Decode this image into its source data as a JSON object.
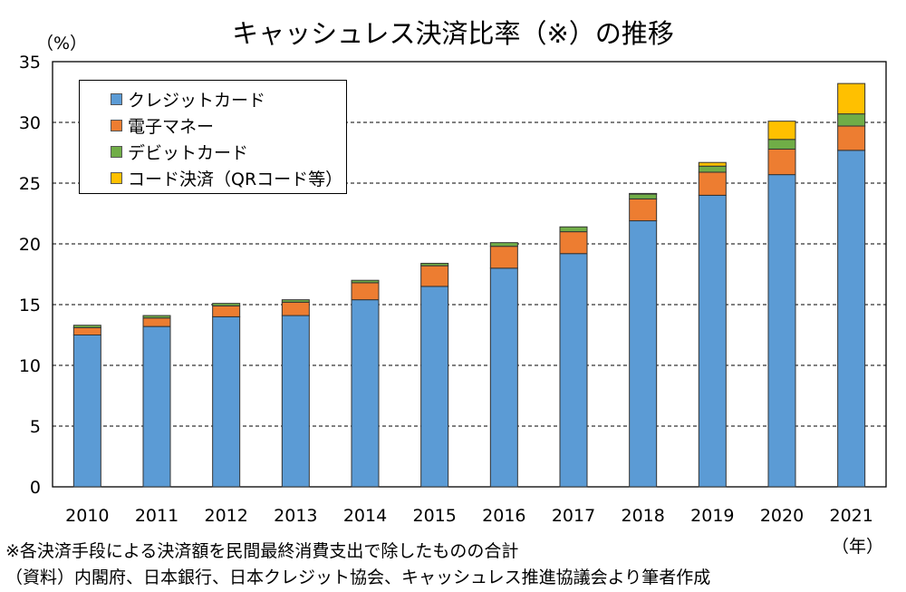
{
  "chart_data": {
    "type": "bar",
    "stacked": true,
    "title": "キャッシュレス決済比率（※）の推移",
    "ylabel": "（%）",
    "xlabel": "（年）",
    "ylim": [
      0,
      35
    ],
    "yticks": [
      0,
      5,
      10,
      15,
      20,
      25,
      30,
      35
    ],
    "grid": "horizontal-dashed",
    "legend_position": "top-left",
    "categories": [
      "2010",
      "2011",
      "2012",
      "2013",
      "2014",
      "2015",
      "2016",
      "2017",
      "2018",
      "2019",
      "2020",
      "2021"
    ],
    "series": [
      {
        "name": "クレジットカード",
        "color": "#5b9bd5",
        "values": [
          12.5,
          13.2,
          14.0,
          14.1,
          15.4,
          16.5,
          18.0,
          19.2,
          21.9,
          24.0,
          25.7,
          27.7
        ]
      },
      {
        "name": "電子マネー",
        "color": "#ed7d31",
        "values": [
          0.6,
          0.7,
          0.9,
          1.1,
          1.4,
          1.7,
          1.8,
          1.8,
          1.8,
          1.9,
          2.1,
          2.0
        ]
      },
      {
        "name": "デビットカード",
        "color": "#70ad47",
        "values": [
          0.2,
          0.2,
          0.2,
          0.2,
          0.2,
          0.2,
          0.3,
          0.4,
          0.4,
          0.5,
          0.8,
          1.0
        ]
      },
      {
        "name": "コード決済（QRコード等）",
        "color": "#ffc000",
        "values": [
          0,
          0,
          0,
          0,
          0,
          0,
          0,
          0,
          0.05,
          0.3,
          1.5,
          2.5
        ]
      }
    ]
  },
  "footnotes": {
    "note": "※各決済手段による決済額を民間最終消費支出で除したものの合計",
    "source": "（資料）内閣府、日本銀行、日本クレジット協会、キャッシュレス推進協議会より筆者作成"
  }
}
